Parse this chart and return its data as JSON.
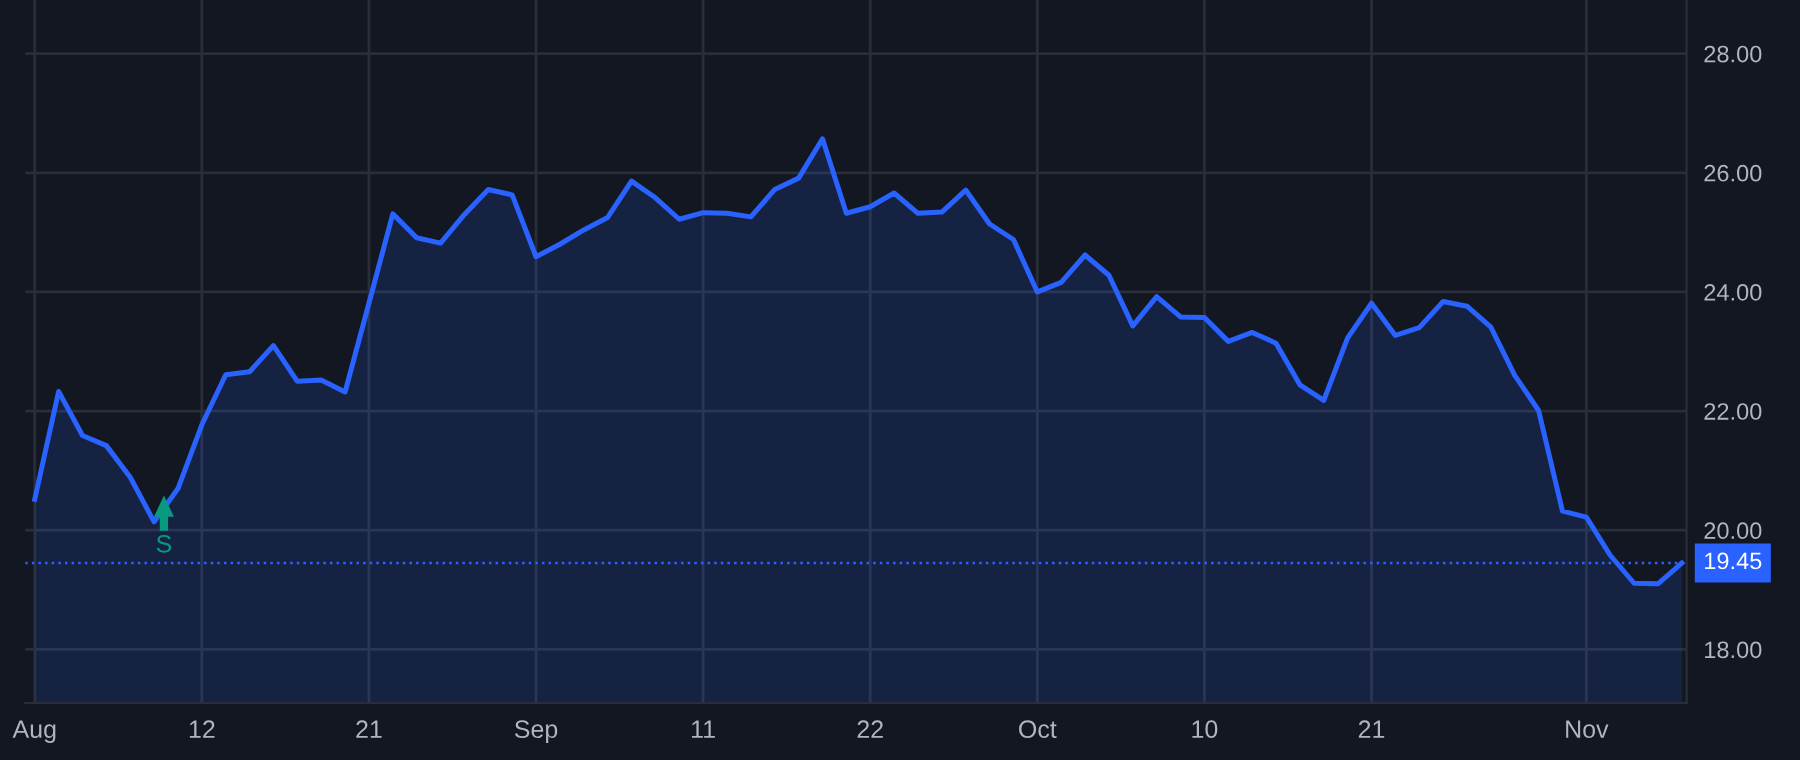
{
  "chart_data": {
    "type": "area",
    "categories": [
      "Aug",
      null,
      null,
      null,
      null,
      null,
      null,
      "12",
      null,
      null,
      null,
      null,
      null,
      null,
      "21",
      null,
      null,
      null,
      null,
      null,
      null,
      "Sep",
      null,
      null,
      null,
      null,
      null,
      null,
      "11",
      null,
      null,
      null,
      null,
      null,
      null,
      "22",
      null,
      null,
      null,
      null,
      null,
      null,
      "Oct",
      null,
      null,
      null,
      null,
      null,
      null,
      "10",
      null,
      null,
      null,
      null,
      null,
      null,
      "21",
      null,
      null,
      null,
      null,
      null,
      null,
      null,
      null,
      "Nov",
      null,
      null,
      null,
      null
    ],
    "series": [
      {
        "color": "#2962ff",
        "values": [
          20.52,
          22.33,
          21.59,
          21.42,
          20.89,
          20.14,
          20.7,
          21.77,
          22.61,
          22.66,
          23.1,
          22.5,
          22.52,
          22.32,
          23.81,
          25.31,
          24.91,
          24.82,
          25.3,
          25.72,
          25.63,
          24.59,
          24.8,
          25.04,
          25.25,
          25.86,
          25.58,
          25.22,
          25.33,
          25.32,
          25.26,
          25.72,
          25.91,
          26.57,
          25.32,
          25.43,
          25.66,
          25.32,
          25.34,
          25.71,
          25.14,
          24.88,
          24.0,
          24.16,
          24.62,
          24.28,
          23.43,
          23.92,
          23.58,
          23.57,
          23.17,
          23.32,
          23.14,
          22.44,
          22.18,
          23.23,
          23.81,
          23.27,
          23.4,
          23.84,
          23.76,
          23.41,
          22.6,
          22.01,
          20.32,
          20.22,
          19.58,
          19.11,
          19.1,
          19.45
        ]
      }
    ],
    "ylim": [
      17.1,
      28.9
    ],
    "yticks": [
      {
        "value": 18,
        "label": "18.00"
      },
      {
        "value": 20,
        "label": "20.00"
      },
      {
        "value": 22,
        "label": "22.00"
      },
      {
        "value": 24,
        "label": "24.00"
      },
      {
        "value": 26,
        "label": "26.00"
      },
      {
        "value": 28,
        "label": "28.00"
      }
    ],
    "ref_lines": [
      {
        "axis": "y",
        "value": 19.45,
        "label": "19.45",
        "color": "#2962ff",
        "line_style": "dotted"
      }
    ],
    "annotations": [
      "S"
    ],
    "grid": true,
    "legend": false
  }
}
